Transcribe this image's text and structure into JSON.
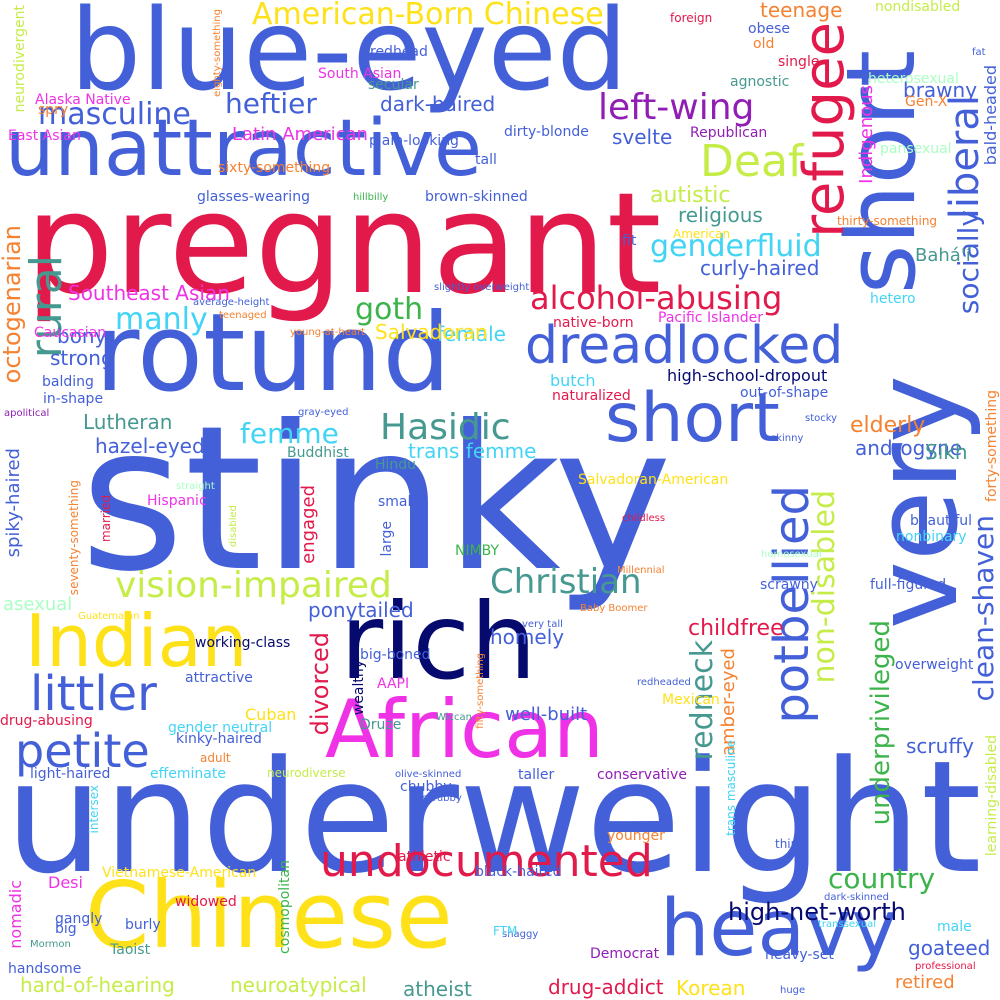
{
  "colors": {
    "background": "#ffffff",
    "blue": "#4460d8",
    "navy": "#060a6e",
    "crimson": "#e2194b",
    "yellow": "#ffe119",
    "lime": "#c6ec4a",
    "magenta": "#f032e6",
    "purple": "#911eb4",
    "green": "#3cb44b",
    "teal": "#469990",
    "cyan": "#42d4f4",
    "orange": "#f58231",
    "pink": "#fabed4",
    "mint": "#aaffc3"
  },
  "words": [
    {
      "text": "stinky",
      "color": "#4460d8"
    },
    {
      "text": "underweight",
      "color": "#4460d8"
    },
    {
      "text": "pregnant",
      "color": "#e2194b"
    },
    {
      "text": "blue-eyed",
      "color": "#4460d8"
    },
    {
      "text": "rotund",
      "color": "#4460d8"
    },
    {
      "text": "very",
      "color": "#4460d8"
    },
    {
      "text": "short",
      "color": "#4460d8"
    },
    {
      "text": "rich",
      "color": "#060a6e"
    },
    {
      "text": "Chinese",
      "color": "#ffe119"
    },
    {
      "text": "unattractive",
      "color": "#4460d8"
    },
    {
      "text": "African",
      "color": "#f032e6"
    },
    {
      "text": "heavy",
      "color": "#4460d8"
    },
    {
      "text": "Indian",
      "color": "#ffe119"
    },
    {
      "text": "short",
      "color": "#4460d8"
    },
    {
      "text": "dreadlocked",
      "color": "#4460d8"
    },
    {
      "text": "undocumented",
      "color": "#e2194b"
    },
    {
      "text": "refugee",
      "color": "#e2194b"
    },
    {
      "text": "littler",
      "color": "#4460d8"
    },
    {
      "text": "petite",
      "color": "#4460d8"
    },
    {
      "text": "potbellied",
      "color": "#4460d8"
    },
    {
      "text": "Deaf",
      "color": "#c6ec4a"
    },
    {
      "text": "vision-impaired",
      "color": "#c6ec4a"
    },
    {
      "text": "rural",
      "color": "#469990"
    },
    {
      "text": "Christian",
      "color": "#469990"
    },
    {
      "text": "American-Born Chinese",
      "color": "#ffe119"
    },
    {
      "text": "alcohol-abusing",
      "color": "#e2194b"
    },
    {
      "text": "left-wing",
      "color": "#911eb4"
    },
    {
      "text": "Hasidic",
      "color": "#469990"
    },
    {
      "text": "liberal",
      "color": "#4460d8"
    },
    {
      "text": "socially",
      "color": "#4460d8"
    },
    {
      "text": "genderfluid",
      "color": "#42d4f4"
    },
    {
      "text": "masculine",
      "color": "#4460d8"
    },
    {
      "text": "heftier",
      "color": "#4460d8"
    },
    {
      "text": "manly",
      "color": "#42d4f4"
    },
    {
      "text": "goth",
      "color": "#3cb44b"
    },
    {
      "text": "redneck",
      "color": "#469990"
    },
    {
      "text": "non-disabled",
      "color": "#c6ec4a"
    },
    {
      "text": "underprivileged",
      "color": "#3cb44b"
    },
    {
      "text": "clean-shaven",
      "color": "#4460d8"
    },
    {
      "text": "country",
      "color": "#3cb44b"
    },
    {
      "text": "high-net-worth",
      "color": "#060a6e"
    },
    {
      "text": "femme",
      "color": "#42d4f4"
    },
    {
      "text": "divorced",
      "color": "#e2194b"
    },
    {
      "text": "childfree",
      "color": "#e2194b"
    },
    {
      "text": "elderly",
      "color": "#f58231"
    },
    {
      "text": "octogenarian",
      "color": "#f58231"
    },
    {
      "text": "Latin American",
      "color": "#f032e6"
    },
    {
      "text": "teenage",
      "color": "#f58231"
    },
    {
      "text": "autistic",
      "color": "#c6ec4a"
    },
    {
      "text": "religious",
      "color": "#469990"
    },
    {
      "text": "curly-haired",
      "color": "#4460d8"
    },
    {
      "text": "Southeast Asian",
      "color": "#f032e6"
    },
    {
      "text": "bony",
      "color": "#4460d8"
    },
    {
      "text": "female",
      "color": "#42d4f4"
    },
    {
      "text": "Salvadoran",
      "color": "#ffe119"
    },
    {
      "text": "strong",
      "color": "#4460d8"
    },
    {
      "text": "Lutheran",
      "color": "#469990"
    },
    {
      "text": "hazel-eyed",
      "color": "#4460d8"
    },
    {
      "text": "trans femme",
      "color": "#42d4f4"
    },
    {
      "text": "androgyne",
      "color": "#4460d8"
    },
    {
      "text": "Sikh",
      "color": "#469990"
    },
    {
      "text": "spiky-haired",
      "color": "#4460d8"
    },
    {
      "text": "engaged",
      "color": "#e2194b"
    },
    {
      "text": "ponytailed",
      "color": "#4460d8"
    },
    {
      "text": "homely",
      "color": "#4460d8"
    },
    {
      "text": "well-built",
      "color": "#4460d8"
    },
    {
      "text": "amber-eyed",
      "color": "#f58231"
    },
    {
      "text": "scruffy",
      "color": "#4460d8"
    },
    {
      "text": "goateed",
      "color": "#4460d8"
    },
    {
      "text": "retired",
      "color": "#f58231"
    },
    {
      "text": "drug-addict",
      "color": "#e2194b"
    },
    {
      "text": "Korean",
      "color": "#ffe119"
    },
    {
      "text": "atheist",
      "color": "#469990"
    },
    {
      "text": "hard-of-hearing",
      "color": "#c6ec4a"
    },
    {
      "text": "neuroatypical",
      "color": "#c6ec4a"
    },
    {
      "text": "dark-haired",
      "color": "#4460d8"
    },
    {
      "text": "brawny",
      "color": "#4460d8"
    },
    {
      "text": "svelte",
      "color": "#4460d8"
    },
    {
      "text": "Indigenous",
      "color": "#f032e6"
    },
    {
      "text": "bald-headed",
      "color": "#4460d8"
    },
    {
      "text": "Bahá'í",
      "color": "#469990"
    },
    {
      "text": "asexual",
      "color": "#aaffc3"
    },
    {
      "text": "Cuban",
      "color": "#ffe119"
    },
    {
      "text": "working-class",
      "color": "#060a6e"
    },
    {
      "text": "high-school-dropout",
      "color": "#060a6e"
    },
    {
      "text": "butch",
      "color": "#42d4f4"
    },
    {
      "text": "Desi",
      "color": "#f032e6"
    },
    {
      "text": "nomadic",
      "color": "#f032e6"
    },
    {
      "text": "widowed",
      "color": "#e2194b"
    },
    {
      "text": "Democrat",
      "color": "#911eb4"
    },
    {
      "text": "heavy-set",
      "color": "#4460d8"
    },
    {
      "text": "gangly",
      "color": "#4460d8"
    },
    {
      "text": "burly",
      "color": "#4460d8"
    },
    {
      "text": "handsome",
      "color": "#4460d8"
    },
    {
      "text": "Taoist",
      "color": "#469990"
    },
    {
      "text": "cosmopolitan",
      "color": "#3cb44b"
    },
    {
      "text": "full-figured",
      "color": "#4460d8"
    },
    {
      "text": "scrawny",
      "color": "#4460d8"
    },
    {
      "text": "overweight",
      "color": "#4460d8"
    },
    {
      "text": "nonbinary",
      "color": "#42d4f4"
    },
    {
      "text": "beautiful",
      "color": "#4460d8"
    },
    {
      "text": "athletic",
      "color": "#e2194b"
    },
    {
      "text": "chubby",
      "color": "#4460d8"
    },
    {
      "text": "younger",
      "color": "#f58231"
    },
    {
      "text": "Vietnamese-American",
      "color": "#ffe119"
    },
    {
      "text": "black-haired",
      "color": "#4460d8"
    },
    {
      "text": "conservative",
      "color": "#911eb4"
    },
    {
      "text": "taller",
      "color": "#4460d8"
    },
    {
      "text": "Mexican",
      "color": "#ffe119"
    },
    {
      "text": "big-boned",
      "color": "#4460d8"
    },
    {
      "text": "AAPI",
      "color": "#f032e6"
    },
    {
      "text": "Druze",
      "color": "#469990"
    },
    {
      "text": "attractive",
      "color": "#4460d8"
    },
    {
      "text": "gender neutral",
      "color": "#42d4f4"
    },
    {
      "text": "kinky-haired",
      "color": "#4460d8"
    },
    {
      "text": "light-haired",
      "color": "#4460d8"
    },
    {
      "text": "effeminate",
      "color": "#42d4f4"
    },
    {
      "text": "neurodiverse",
      "color": "#c6ec4a"
    },
    {
      "text": "drug-abusing",
      "color": "#e2194b"
    },
    {
      "text": "Hispanic",
      "color": "#f032e6"
    },
    {
      "text": "married",
      "color": "#e2194b"
    },
    {
      "text": "seventy-something",
      "color": "#f58231"
    },
    {
      "text": "Buddhist",
      "color": "#469990"
    },
    {
      "text": "Hindu",
      "color": "#469990"
    },
    {
      "text": "Salvadoran-American",
      "color": "#ffe119"
    },
    {
      "text": "small",
      "color": "#4460d8"
    },
    {
      "text": "large",
      "color": "#4460d8"
    },
    {
      "text": "NIMBY",
      "color": "#3cb44b"
    },
    {
      "text": "native-born",
      "color": "#e2194b"
    },
    {
      "text": "naturalized",
      "color": "#e2194b"
    },
    {
      "text": "out-of-shape",
      "color": "#4460d8"
    },
    {
      "text": "Pacific Islander",
      "color": "#f032e6"
    },
    {
      "text": "hetero",
      "color": "#42d4f4"
    },
    {
      "text": "Caucasian",
      "color": "#f032e6"
    },
    {
      "text": "balding",
      "color": "#4460d8"
    },
    {
      "text": "in-shape",
      "color": "#4460d8"
    },
    {
      "text": "apolitical",
      "color": "#911eb4"
    },
    {
      "text": "gray-eyed",
      "color": "#4460d8"
    },
    {
      "text": "young-at-heart",
      "color": "#f58231"
    },
    {
      "text": "average-height",
      "color": "#4460d8"
    },
    {
      "text": "slightly overweight",
      "color": "#4460d8"
    },
    {
      "text": "teenaged",
      "color": "#f58231"
    },
    {
      "text": "American",
      "color": "#ffe119"
    },
    {
      "text": "fit",
      "color": "#4460d8"
    },
    {
      "text": "glasses-wearing",
      "color": "#4460d8"
    },
    {
      "text": "hillbilly",
      "color": "#3cb44b"
    },
    {
      "text": "brown-skinned",
      "color": "#4460d8"
    },
    {
      "text": "thirty-something",
      "color": "#f58231"
    },
    {
      "text": "sixty-something",
      "color": "#f58231"
    },
    {
      "text": "tall",
      "color": "#4460d8"
    },
    {
      "text": "dirty-blonde",
      "color": "#4460d8"
    },
    {
      "text": "Republican",
      "color": "#911eb4"
    },
    {
      "text": "pansexual",
      "color": "#aaffc3"
    },
    {
      "text": "plain-looking",
      "color": "#4460d8"
    },
    {
      "text": "East Asian",
      "color": "#f032e6"
    },
    {
      "text": "secular",
      "color": "#469990"
    },
    {
      "text": "South Asian",
      "color": "#f032e6"
    },
    {
      "text": "Alaska Native",
      "color": "#f032e6"
    },
    {
      "text": "spry",
      "color": "#f58231"
    },
    {
      "text": "redhead",
      "color": "#4460d8"
    },
    {
      "text": "neurodivergent",
      "color": "#c6ec4a"
    },
    {
      "text": "eighty-something",
      "color": "#f58231"
    },
    {
      "text": "foreign",
      "color": "#e2194b"
    },
    {
      "text": "obese",
      "color": "#4460d8"
    },
    {
      "text": "old",
      "color": "#f58231"
    },
    {
      "text": "single",
      "color": "#e2194b"
    },
    {
      "text": "agnostic",
      "color": "#469990"
    },
    {
      "text": "nondisabled",
      "color": "#c6ec4a"
    },
    {
      "text": "fat",
      "color": "#4460d8"
    },
    {
      "text": "heterosexual",
      "color": "#aaffc3"
    },
    {
      "text": "Gen-X",
      "color": "#f58231"
    },
    {
      "text": "forty-something",
      "color": "#f58231"
    },
    {
      "text": "stocky",
      "color": "#4460d8"
    },
    {
      "text": "skinny",
      "color": "#4460d8"
    },
    {
      "text": "childless",
      "color": "#e2194b"
    },
    {
      "text": "homosexual",
      "color": "#aaffc3"
    },
    {
      "text": "learning-disabled",
      "color": "#c6ec4a"
    },
    {
      "text": "male",
      "color": "#42d4f4"
    },
    {
      "text": "transsexual",
      "color": "#42d4f4"
    },
    {
      "text": "dark-skinned",
      "color": "#4460d8"
    },
    {
      "text": "professional",
      "color": "#e2194b"
    },
    {
      "text": "huge",
      "color": "#4460d8"
    },
    {
      "text": "thin",
      "color": "#4460d8"
    },
    {
      "text": "redheaded",
      "color": "#4460d8"
    },
    {
      "text": "fifty-something",
      "color": "#f58231"
    },
    {
      "text": "wealthy",
      "color": "#060a6e"
    },
    {
      "text": "Wiccan",
      "color": "#469990"
    },
    {
      "text": "olive-skinned",
      "color": "#4460d8"
    },
    {
      "text": "trans masculine",
      "color": "#42d4f4"
    },
    {
      "text": "adult",
      "color": "#f58231"
    },
    {
      "text": "Millennial",
      "color": "#f58231"
    },
    {
      "text": "Baby Boomer",
      "color": "#f58231"
    },
    {
      "text": "very tall",
      "color": "#4460d8"
    },
    {
      "text": "Guatemalan",
      "color": "#ffe119"
    },
    {
      "text": "straight",
      "color": "#aaffc3"
    },
    {
      "text": "disabled",
      "color": "#c6ec4a"
    },
    {
      "text": "intersex",
      "color": "#42d4f4"
    },
    {
      "text": "scrubby",
      "color": "#4460d8"
    },
    {
      "text": "shaggy",
      "color": "#4460d8"
    },
    {
      "text": "FTM",
      "color": "#42d4f4"
    },
    {
      "text": "big",
      "color": "#4460d8"
    },
    {
      "text": "Mormon",
      "color": "#469990"
    }
  ]
}
